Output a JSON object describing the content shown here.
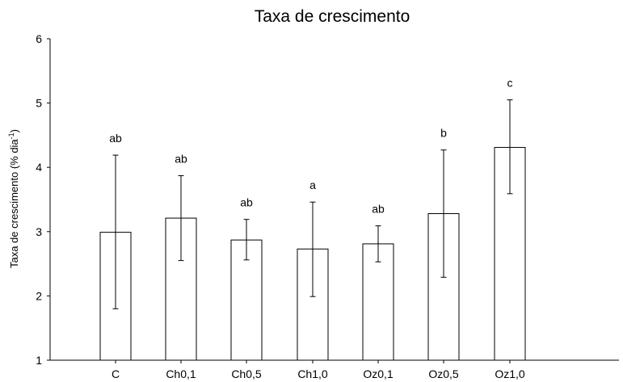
{
  "chart_data": {
    "type": "bar",
    "title": "Taxa de crescimento",
    "ylabel": {
      "main": "Taxa de crescimento (% dia",
      "superscript": "-1",
      "close": ")"
    },
    "ylim": [
      1,
      6
    ],
    "yticks": [
      1,
      2,
      3,
      4,
      5,
      6
    ],
    "grid": false,
    "categories": [
      "C",
      "Ch0,1",
      "Ch0,5",
      "Ch1,0",
      "Oz0,1",
      "Oz0,5",
      "Oz1,0"
    ],
    "values": [
      2.99,
      3.21,
      2.87,
      2.73,
      2.81,
      3.28,
      4.31
    ],
    "error_low": [
      1.8,
      2.55,
      2.56,
      1.99,
      2.53,
      2.29,
      3.59
    ],
    "error_high": [
      4.19,
      3.87,
      3.19,
      3.46,
      3.09,
      4.27,
      5.05
    ],
    "significance_labels": [
      "ab",
      "ab",
      "ab",
      "a",
      "ab",
      "b",
      "c"
    ],
    "bar_fill": "#ffffff",
    "line_color": "#000000"
  }
}
